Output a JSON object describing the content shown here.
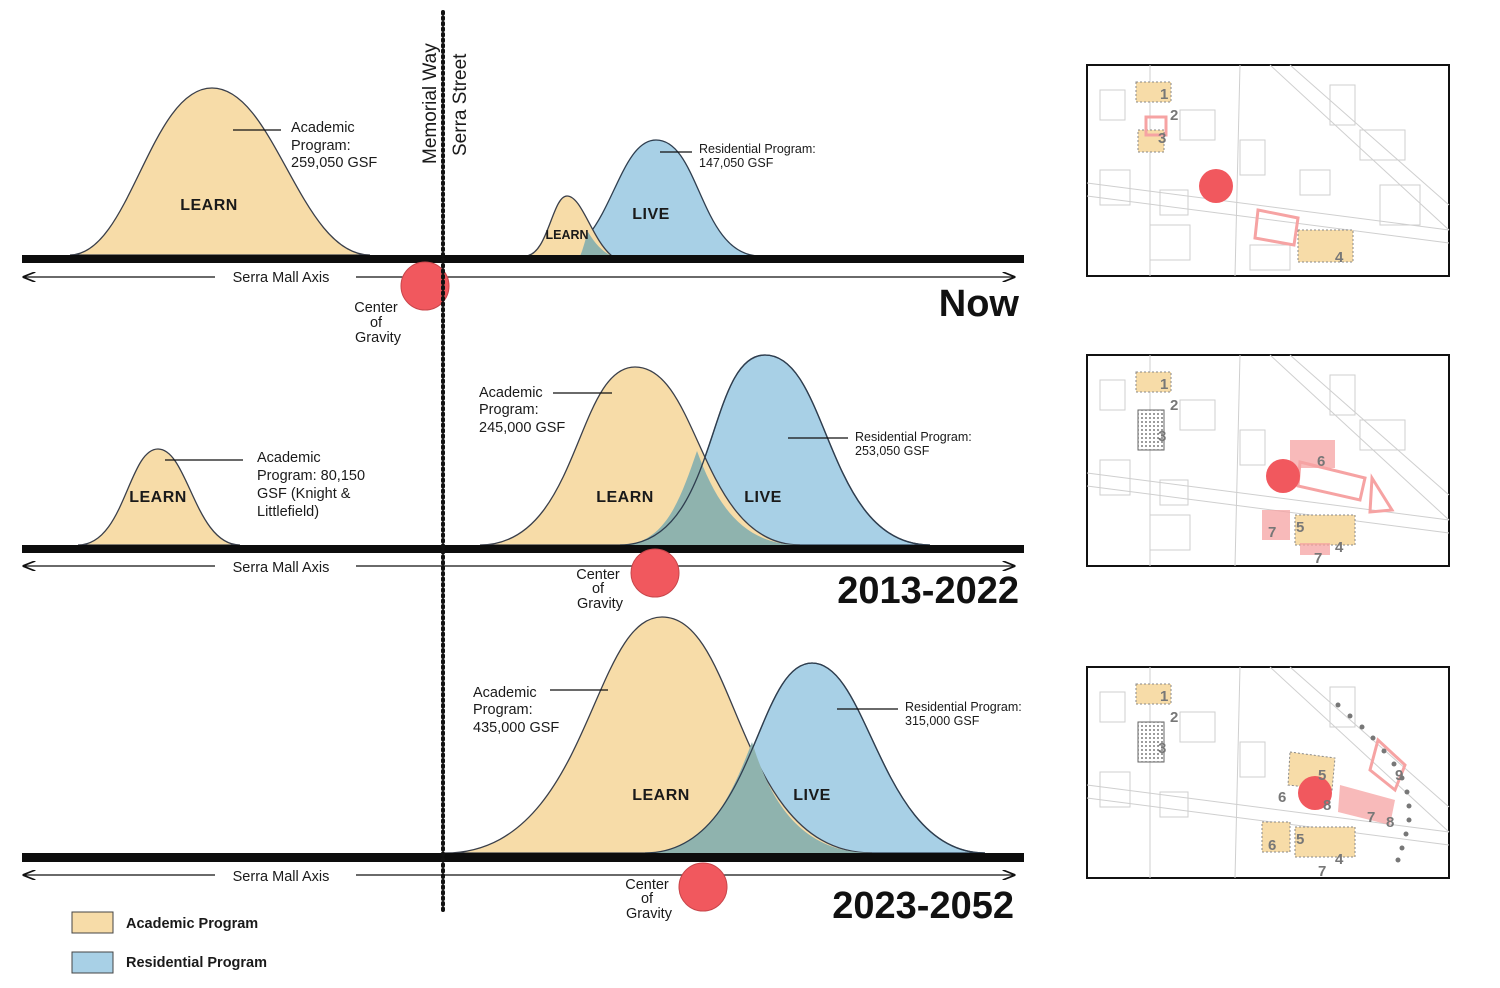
{
  "street_labels": [
    "Memorial Way",
    "Serra Street"
  ],
  "panels": [
    {
      "period": "Now",
      "axis_label": "Serra Mall Axis",
      "center_of_gravity": [
        "Center",
        "of",
        "Gravity"
      ],
      "curves": [
        {
          "type": "academic",
          "label": "LEARN"
        },
        {
          "type": "academic",
          "label": "LEARN"
        },
        {
          "type": "residential",
          "label": "LIVE"
        }
      ],
      "annotations": [
        {
          "lines": [
            "Academic",
            "Program:",
            "259,050 GSF"
          ]
        },
        {
          "lines": [
            "Residential Program:",
            "147,050 GSF"
          ]
        }
      ]
    },
    {
      "period": "2013-2022",
      "axis_label": "Serra Mall Axis",
      "center_of_gravity": [
        "Center",
        "of",
        "Gravity"
      ],
      "curves": [
        {
          "type": "academic",
          "label": "LEARN"
        },
        {
          "type": "academic",
          "label": "LEARN"
        },
        {
          "type": "residential",
          "label": "LIVE"
        }
      ],
      "annotations": [
        {
          "lines": [
            "Academic",
            "Program: 80,150",
            "GSF (Knight &",
            "Littlefield)"
          ]
        },
        {
          "lines": [
            "Academic",
            "Program:",
            "245,000 GSF"
          ]
        },
        {
          "lines": [
            "Residential Program:",
            "253,050 GSF"
          ]
        }
      ]
    },
    {
      "period": "2023-2052",
      "axis_label": "Serra Mall Axis",
      "center_of_gravity": [
        "Center",
        "of",
        "Gravity"
      ],
      "curves": [
        {
          "type": "academic",
          "label": "LEARN"
        },
        {
          "type": "residential",
          "label": "LIVE"
        }
      ],
      "annotations": [
        {
          "lines": [
            "Academic",
            "Program:",
            "435,000 GSF"
          ]
        },
        {
          "lines": [
            "Residential Program:",
            "315,000 GSF"
          ]
        }
      ]
    }
  ],
  "legend": [
    {
      "label": "Academic Program",
      "color": "#f7dca8"
    },
    {
      "label": "Residential Program",
      "color": "#a8d0e6"
    }
  ],
  "maps": [
    {
      "labels": [
        "1",
        "2",
        "3",
        "4"
      ]
    },
    {
      "labels": [
        "1",
        "2",
        "3",
        "4",
        "5",
        "6",
        "7",
        "7"
      ]
    },
    {
      "labels": [
        "1",
        "2",
        "3",
        "4",
        "5",
        "5",
        "6",
        "6",
        "7",
        "7",
        "8",
        "8",
        "9"
      ]
    }
  ],
  "colors": {
    "academic": "#f7dca8",
    "residential": "#a8d0e6",
    "overlap": "#8fb3ae",
    "center_of_gravity": "#f1585e",
    "highlight": "#f6a3a3"
  }
}
